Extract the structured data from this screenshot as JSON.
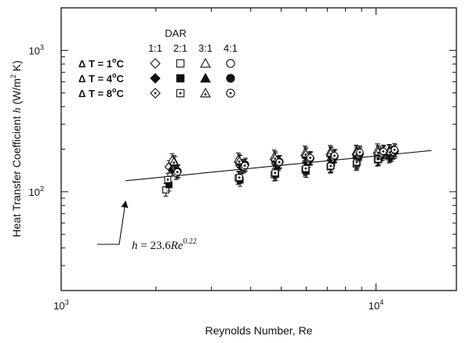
{
  "chart_data": {
    "type": "scatter",
    "xlabel": "Reynolds Number, Re",
    "ylabel": "Heat Transfer Coefficient h (W/m² K)",
    "ylabel_parts": {
      "pre": "Heat Transfer Coefficient ",
      "var": "h",
      "unit": " (W/m",
      "sup": "2",
      "post": " K)"
    },
    "x_scale": "log",
    "y_scale": "log",
    "xlim": [
      1000,
      18000
    ],
    "ylim": [
      20,
      2000
    ],
    "x_ticks": [
      {
        "value": 1000,
        "base": "10",
        "exp": "3"
      },
      {
        "value": 10000,
        "base": "10",
        "exp": "4"
      }
    ],
    "y_ticks": [
      {
        "value": 100,
        "base": "10",
        "exp": "2"
      },
      {
        "value": 1000,
        "base": "10",
        "exp": "3"
      }
    ],
    "grid": false,
    "legend": {
      "title": "DAR",
      "columns": [
        "1:1",
        "2:1",
        "3:1",
        "4:1"
      ],
      "rows": [
        {
          "label_pre": "Δ T = 1",
          "label_sup": "o",
          "label_post": "C",
          "style": "open"
        },
        {
          "label_pre": "Δ T = 4",
          "label_sup": "o",
          "label_post": "C",
          "style": "filled"
        },
        {
          "label_pre": "Δ T = 8",
          "label_sup": "o",
          "label_post": "C",
          "style": "dotted"
        }
      ],
      "markers": [
        "diamond",
        "square",
        "triangle",
        "circle"
      ],
      "placement": "top-left"
    },
    "fit": {
      "equation": "h = 23.6Re^0.22",
      "label_main": "h = 23.6Re",
      "label_exp": "0.22",
      "coef": 23.6,
      "exponent": 0.22,
      "x_range": [
        1600,
        15000
      ]
    },
    "series": [
      {
        "dar": "1:1",
        "marker": "diamond",
        "style": "open",
        "points": [
          [
            2200,
            150
          ],
          [
            3700,
            152
          ],
          [
            4800,
            158
          ],
          [
            6000,
            163
          ],
          [
            7200,
            168
          ],
          [
            8700,
            175
          ],
          [
            10200,
            180
          ],
          [
            11100,
            185
          ]
        ]
      },
      {
        "dar": "1:1",
        "marker": "diamond",
        "style": "filled",
        "points": [
          [
            2250,
            143
          ],
          [
            3750,
            149
          ],
          [
            4850,
            155
          ],
          [
            6050,
            160
          ],
          [
            7250,
            166
          ],
          [
            8750,
            172
          ],
          [
            10300,
            178
          ],
          [
            11200,
            182
          ]
        ]
      },
      {
        "dar": "1:1",
        "marker": "diamond",
        "style": "dotted",
        "points": [
          [
            2300,
            147
          ],
          [
            3800,
            153
          ],
          [
            4900,
            157
          ],
          [
            6100,
            165
          ],
          [
            7300,
            170
          ],
          [
            8800,
            176
          ],
          [
            10400,
            183
          ],
          [
            11300,
            188
          ]
        ]
      },
      {
        "dar": "2:1",
        "marker": "square",
        "style": "open",
        "points": [
          [
            2150,
            103
          ],
          [
            3650,
            125
          ],
          [
            4750,
            132
          ],
          [
            5950,
            143
          ],
          [
            7150,
            150
          ],
          [
            8650,
            157
          ],
          [
            10100,
            168
          ],
          [
            11000,
            177
          ]
        ]
      },
      {
        "dar": "2:1",
        "marker": "square",
        "style": "filled",
        "points": [
          [
            2200,
            112
          ],
          [
            3700,
            121
          ],
          [
            4800,
            133
          ],
          [
            6000,
            140
          ],
          [
            7200,
            153
          ],
          [
            8700,
            160
          ],
          [
            10200,
            172
          ],
          [
            11100,
            180
          ]
        ]
      },
      {
        "dar": "2:1",
        "marker": "square",
        "style": "dotted",
        "points": [
          [
            2180,
            122
          ],
          [
            3680,
            126
          ],
          [
            4780,
            136
          ],
          [
            5980,
            146
          ],
          [
            7180,
            152
          ],
          [
            8680,
            162
          ],
          [
            10150,
            170
          ],
          [
            11050,
            182
          ]
        ]
      },
      {
        "dar": "3:1",
        "marker": "triangle",
        "style": "open",
        "points": [
          [
            2250,
            168
          ],
          [
            3650,
            170
          ],
          [
            4750,
            178
          ],
          [
            5950,
            190
          ],
          [
            7150,
            192
          ],
          [
            8650,
            193
          ],
          [
            10100,
            197
          ],
          [
            11000,
            195
          ]
        ]
      },
      {
        "dar": "3:1",
        "marker": "triangle",
        "style": "filled",
        "points": [
          [
            2300,
            160
          ],
          [
            3700,
            163
          ],
          [
            4800,
            170
          ],
          [
            6000,
            182
          ],
          [
            7200,
            185
          ],
          [
            8700,
            185
          ],
          [
            10200,
            188
          ],
          [
            11100,
            188
          ]
        ]
      },
      {
        "dar": "3:1",
        "marker": "triangle",
        "style": "dotted",
        "points": [
          [
            2280,
            163
          ],
          [
            3680,
            166
          ],
          [
            4780,
            174
          ],
          [
            5980,
            186
          ],
          [
            7180,
            188
          ],
          [
            8680,
            190
          ],
          [
            10150,
            192
          ],
          [
            11050,
            193
          ]
        ]
      },
      {
        "dar": "4:1",
        "marker": "circle",
        "style": "open",
        "points": [
          [
            2320,
            135
          ],
          [
            3800,
            150
          ],
          [
            4900,
            160
          ],
          [
            6150,
            170
          ],
          [
            7350,
            175
          ],
          [
            8850,
            182
          ],
          [
            10500,
            186
          ],
          [
            11400,
            190
          ]
        ]
      },
      {
        "dar": "4:1",
        "marker": "circle",
        "style": "filled",
        "points": [
          [
            2350,
            140
          ],
          [
            3850,
            156
          ],
          [
            4950,
            163
          ],
          [
            6200,
            172
          ],
          [
            7400,
            178
          ],
          [
            8900,
            186
          ],
          [
            10600,
            190
          ],
          [
            11500,
            194
          ]
        ]
      },
      {
        "dar": "4:1",
        "marker": "circle",
        "style": "dotted",
        "points": [
          [
            2340,
            138
          ],
          [
            3830,
            153
          ],
          [
            4930,
            162
          ],
          [
            6180,
            174
          ],
          [
            7380,
            180
          ],
          [
            8880,
            190
          ],
          [
            10550,
            193
          ],
          [
            11450,
            198
          ]
        ]
      }
    ]
  }
}
